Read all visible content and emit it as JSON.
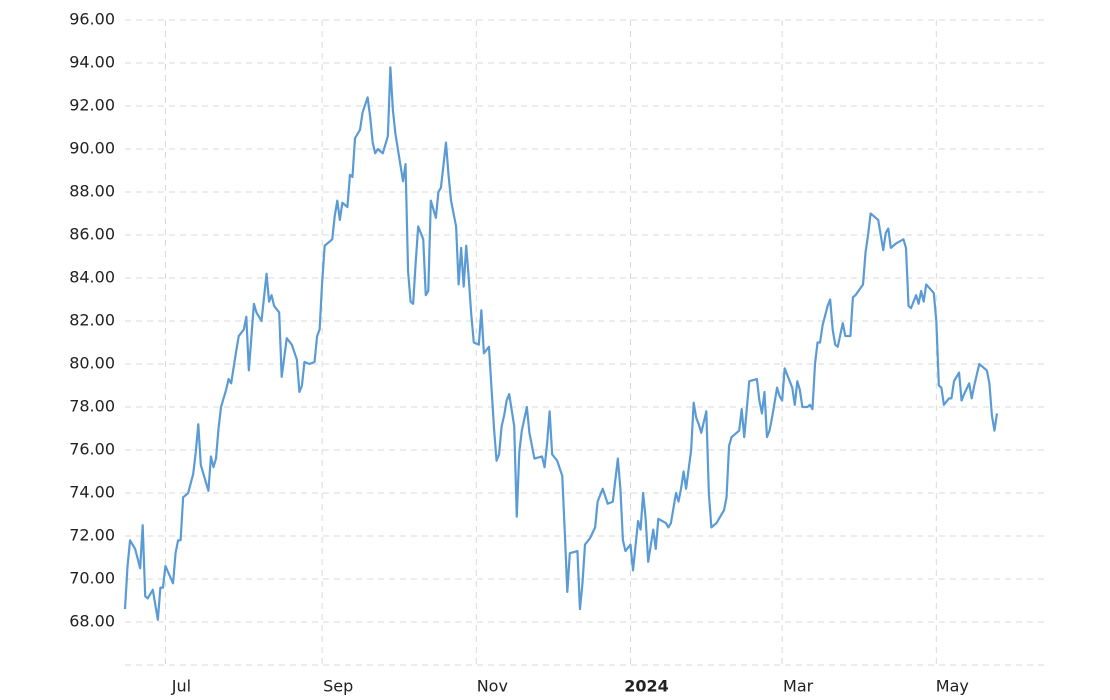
{
  "chart_data": {
    "type": "line",
    "color": "#5b9bd5",
    "grid": true,
    "x": [
      0,
      1,
      2,
      4,
      6,
      7,
      8,
      9,
      11,
      13,
      14,
      15,
      16,
      19,
      20,
      21,
      22,
      23,
      25,
      27,
      28,
      29,
      30,
      33,
      34,
      35,
      36,
      37,
      38,
      40,
      41,
      42,
      44,
      45,
      47,
      48,
      49,
      51,
      52,
      54,
      56,
      57,
      58,
      59,
      61,
      62,
      64,
      66,
      68,
      69,
      70,
      71,
      73,
      75,
      76,
      77,
      78,
      79,
      82,
      83,
      84,
      85,
      86,
      88,
      89,
      90,
      91,
      93,
      94,
      96,
      97,
      98,
      99,
      100,
      102,
      104,
      105,
      106,
      107,
      110,
      111,
      112,
      113,
      114,
      115,
      116,
      118,
      119,
      120,
      121,
      122,
      123,
      124,
      125,
      127,
      128,
      129,
      131,
      132,
      133,
      134,
      135,
      136,
      137,
      138,
      140,
      141,
      142,
      144,
      146,
      147,
      148,
      149,
      150,
      151,
      152,
      154,
      155,
      156,
      157,
      159,
      160,
      162,
      165,
      166,
      167,
      168,
      169,
      171,
      173,
      174,
      175,
      176,
      179,
      180,
      181,
      182,
      184,
      186,
      187,
      189,
      191,
      193,
      195,
      196,
      197,
      198,
      200,
      201,
      203,
      204,
      205,
      206,
      207,
      209,
      210,
      211,
      214,
      215,
      216,
      218,
      219,
      220,
      221,
      222,
      224,
      225,
      226,
      227,
      228,
      230,
      231,
      232,
      234,
      235,
      237,
      238,
      239,
      240,
      241,
      243,
      244,
      245,
      247,
      250,
      251,
      252,
      253,
      254,
      255,
      256,
      258,
      259,
      260,
      261,
      262,
      264,
      265,
      266,
      267,
      268,
      270,
      271,
      272,
      273,
      274,
      275,
      276,
      278,
      279,
      280,
      281,
      282,
      284,
      285,
      287,
      288,
      289,
      292,
      293,
      294,
      295,
      298,
      300,
      301,
      302,
      303,
      305,
      308,
      309,
      310,
      311,
      312,
      313,
      314,
      315,
      316,
      317,
      320,
      321,
      322,
      323,
      324,
      326,
      327,
      328,
      330,
      331,
      332,
      334,
      335,
      336,
      338,
      340,
      341,
      342,
      343,
      344,
      345
    ],
    "values": [
      68.6,
      70.6,
      71.8,
      71.4,
      70.5,
      72.5,
      69.2,
      69.1,
      69.5,
      68.1,
      69.6,
      69.6,
      70.6,
      69.8,
      71.2,
      71.8,
      71.8,
      73.8,
      74.0,
      74.9,
      75.9,
      77.2,
      75.3,
      74.1,
      75.7,
      75.2,
      75.6,
      77.0,
      78.0,
      78.8,
      79.3,
      79.1,
      80.6,
      81.3,
      81.6,
      82.2,
      79.7,
      82.8,
      82.4,
      82.0,
      84.2,
      82.9,
      83.2,
      82.7,
      82.4,
      79.4,
      81.2,
      80.9,
      80.2,
      78.7,
      79.0,
      80.1,
      80.0,
      80.1,
      81.3,
      81.6,
      83.8,
      85.5,
      85.8,
      86.9,
      87.6,
      86.7,
      87.5,
      87.3,
      88.8,
      88.7,
      90.5,
      90.9,
      91.7,
      92.4,
      91.5,
      90.3,
      89.8,
      90.0,
      89.8,
      90.6,
      93.8,
      91.8,
      90.7,
      88.5,
      89.3,
      84.3,
      82.9,
      82.8,
      84.7,
      86.4,
      85.8,
      83.2,
      83.4,
      87.6,
      87.2,
      86.8,
      88.0,
      88.2,
      90.3,
      88.8,
      87.6,
      86.4,
      83.7,
      85.4,
      83.6,
      85.5,
      84.0,
      82.3,
      81.0,
      80.9,
      82.5,
      80.5,
      80.8,
      77.0,
      75.5,
      75.8,
      77.1,
      77.6,
      78.3,
      78.6,
      77.1,
      72.9,
      75.9,
      76.9,
      78.0,
      76.8,
      75.6,
      75.7,
      75.2,
      76.3,
      77.8,
      75.8,
      75.5,
      74.8,
      72.2,
      69.4,
      71.2,
      71.3,
      68.6,
      69.8,
      71.6,
      71.9,
      72.4,
      73.6,
      74.2,
      73.5,
      73.6,
      75.6,
      74.2,
      71.8,
      71.3,
      71.6,
      70.4,
      72.7,
      72.3,
      74.0,
      72.8,
      70.8,
      72.3,
      71.4,
      72.8,
      72.6,
      72.4,
      72.6,
      74.0,
      73.6,
      74.2,
      75.0,
      74.2,
      76.0,
      78.2,
      77.5,
      77.2,
      76.8,
      77.8,
      74.0,
      72.4,
      72.6,
      72.8,
      73.2,
      73.8,
      76.2,
      76.6,
      76.7,
      76.9,
      77.9,
      76.6,
      79.2,
      79.3,
      78.3,
      77.7,
      78.7,
      76.6,
      76.9,
      77.5,
      78.9,
      78.5,
      78.3,
      79.8,
      79.5,
      78.9,
      78.1,
      79.2,
      78.8,
      78.0,
      78.0,
      78.1,
      77.9,
      80.0,
      81.0,
      81.0,
      81.8,
      82.7,
      83.0,
      81.6,
      80.9,
      80.8,
      81.9,
      81.3,
      81.3,
      83.1,
      83.2,
      83.7,
      85.2,
      86.0,
      87.0,
      86.7,
      85.3,
      86.1,
      86.3,
      85.4,
      85.6,
      85.8,
      85.4,
      82.7,
      82.6,
      82.9,
      83.2,
      82.8,
      83.4,
      82.9,
      83.7,
      83.3,
      82.0,
      79.0,
      78.9,
      78.1,
      78.4,
      78.4,
      79.2,
      79.6,
      78.3,
      78.6,
      79.1,
      78.4,
      79.0,
      80.0,
      79.8,
      79.7,
      79.1,
      77.6,
      76.9,
      77.7
    ],
    "xlim": [
      0,
      364
    ],
    "xticks": [
      {
        "value": 16,
        "label": "Jul"
      },
      {
        "value": 78,
        "label": "Sep"
      },
      {
        "value": 139,
        "label": "Nov"
      },
      {
        "value": 200,
        "label": "2024"
      },
      {
        "value": 260,
        "label": "Mar"
      },
      {
        "value": 321,
        "label": "May"
      }
    ],
    "ylim": [
      66,
      96
    ],
    "yticks": [
      {
        "value": 68,
        "label": "68.00"
      },
      {
        "value": 70,
        "label": "70.00"
      },
      {
        "value": 72,
        "label": "72.00"
      },
      {
        "value": 74,
        "label": "74.00"
      },
      {
        "value": 76,
        "label": "76.00"
      },
      {
        "value": 78,
        "label": "78.00"
      },
      {
        "value": 80,
        "label": "80.00"
      },
      {
        "value": 82,
        "label": "82.00"
      },
      {
        "value": 84,
        "label": "84.00"
      },
      {
        "value": 86,
        "label": "86.00"
      },
      {
        "value": 88,
        "label": "88.00"
      },
      {
        "value": 90,
        "label": "90.00"
      },
      {
        "value": 92,
        "label": "92.00"
      },
      {
        "value": 94,
        "label": "94.00"
      },
      {
        "value": 96,
        "label": "96.00"
      }
    ]
  }
}
